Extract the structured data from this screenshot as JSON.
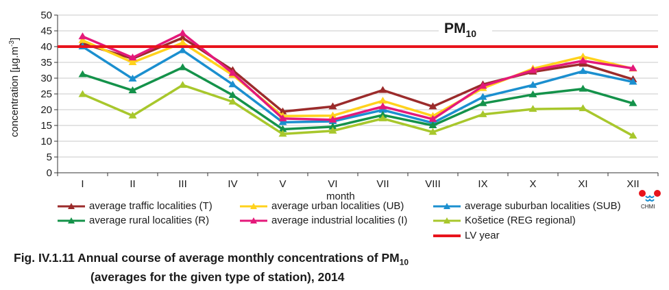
{
  "chart_data": {
    "type": "line",
    "title": "PM10",
    "title_main": "PM",
    "title_sub": "10",
    "xlabel": "month",
    "ylabel": "concentration [μg.m⁻³]",
    "ylabel_text": "concentration [µg.m",
    "ylabel_sup": "-3",
    "ylabel_end": "]",
    "ylim": [
      0,
      50
    ],
    "yticks": [
      "0",
      "5",
      "10",
      "15",
      "20",
      "25",
      "30",
      "35",
      "40",
      "45",
      "50"
    ],
    "categories": [
      "I",
      "II",
      "III",
      "IV",
      "V",
      "VI",
      "VII",
      "VIII",
      "IX",
      "X",
      "XI",
      "XII"
    ],
    "grid": true,
    "limit_line": {
      "name": "LV year",
      "value": 40,
      "color": "#e8141c"
    },
    "series": [
      {
        "name": "average traffic localities (T)",
        "color": "#9b2b2b",
        "values": [
          41.0,
          36.2,
          42.8,
          32.5,
          19.4,
          21.0,
          26.2,
          21.0,
          28.0,
          32.0,
          34.5,
          29.6
        ]
      },
      {
        "name": "average urban localities (UB)",
        "color": "#ffd21c",
        "values": [
          42.0,
          35.0,
          41.2,
          31.0,
          18.0,
          18.1,
          22.8,
          18.0,
          26.8,
          33.0,
          36.8,
          33.0
        ]
      },
      {
        "name": "average suburban localities (SUB)",
        "color": "#1b8fcf",
        "values": [
          40.0,
          29.8,
          38.8,
          28.0,
          16.0,
          16.3,
          19.9,
          15.8,
          24.0,
          27.8,
          32.2,
          28.8
        ]
      },
      {
        "name": "average rural localities (R)",
        "color": "#14924a",
        "values": [
          31.2,
          26.1,
          33.4,
          24.6,
          13.8,
          14.6,
          18.3,
          15.0,
          22.0,
          24.8,
          26.6,
          22.0
        ]
      },
      {
        "name": "average industrial localities (I)",
        "color": "#e4197a",
        "values": [
          43.2,
          36.5,
          44.2,
          31.6,
          17.2,
          16.8,
          21.0,
          17.0,
          27.5,
          32.5,
          35.5,
          33.1
        ]
      },
      {
        "name": "Košetice (REG regional)",
        "color": "#a8c72c",
        "values": [
          24.9,
          18.1,
          27.8,
          22.5,
          12.3,
          13.3,
          17.2,
          12.9,
          18.5,
          20.2,
          20.4,
          11.7
        ]
      }
    ],
    "legend_order": [
      0,
      1,
      2,
      3,
      4,
      5,
      "limit"
    ],
    "legend_position": "bottom"
  },
  "caption": {
    "line1_prefix": "Fig. IV.1.11  Annual course of average monthly concentrations of PM",
    "line1_sub": "10",
    "line2": "(averages for the given type of station), 2014"
  },
  "logo": {
    "text": "CHMI"
  }
}
